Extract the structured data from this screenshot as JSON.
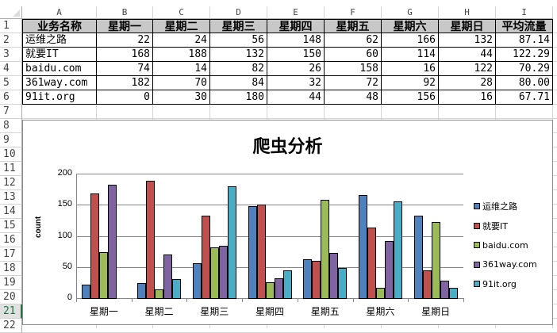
{
  "spreadsheet": {
    "column_letters": [
      "A",
      "B",
      "C",
      "D",
      "E",
      "F",
      "G",
      "H",
      "I"
    ],
    "row_numbers": [
      "1",
      "2",
      "3",
      "4",
      "5",
      "6",
      "7",
      "8",
      "9",
      "10",
      "11",
      "12",
      "13",
      "14",
      "15",
      "16",
      "17",
      "18",
      "19",
      "20",
      "21",
      "22"
    ],
    "selected_row": "21",
    "header_row": [
      "业务名称",
      "星期一",
      "星期二",
      "星期三",
      "星期四",
      "星期五",
      "星期六",
      "星期日",
      "平均流量"
    ],
    "rows": [
      [
        "运维之路",
        "22",
        "24",
        "56",
        "148",
        "62",
        "166",
        "132",
        "87.14"
      ],
      [
        "就要IT",
        "168",
        "188",
        "132",
        "150",
        "60",
        "114",
        "44",
        "122.29"
      ],
      [
        "baidu.com",
        "74",
        "14",
        "82",
        "26",
        "158",
        "16",
        "122",
        "70.29"
      ],
      [
        "361way.com",
        "182",
        "70",
        "84",
        "32",
        "72",
        "92",
        "28",
        "80.00"
      ],
      [
        "91it.org",
        "0",
        "30",
        "180",
        "44",
        "48",
        "156",
        "16",
        "67.71"
      ]
    ]
  },
  "chart_data": {
    "type": "bar",
    "title": "爬虫分析",
    "xlabel": "",
    "ylabel": "count",
    "ylim": [
      0,
      200
    ],
    "yticks": [
      "0",
      "50",
      "100",
      "150",
      "200"
    ],
    "grid": true,
    "legend_position": "right",
    "categories": [
      "星期一",
      "星期二",
      "星期三",
      "星期四",
      "星期五",
      "星期六",
      "星期日"
    ],
    "series": [
      {
        "name": "运维之路",
        "color": "#4f81bd",
        "values": [
          22,
          24,
          56,
          148,
          62,
          166,
          132
        ]
      },
      {
        "name": "就要IT",
        "color": "#c0504d",
        "values": [
          168,
          188,
          132,
          150,
          60,
          114,
          44
        ]
      },
      {
        "name": "baidu.com",
        "color": "#9bbb59",
        "values": [
          74,
          14,
          82,
          26,
          158,
          16,
          122
        ]
      },
      {
        "name": "361way.com",
        "color": "#8064a2",
        "values": [
          182,
          70,
          84,
          32,
          72,
          92,
          28
        ]
      },
      {
        "name": "91it.org",
        "color": "#4bacc6",
        "values": [
          0,
          30,
          180,
          44,
          48,
          156,
          16
        ]
      }
    ]
  }
}
